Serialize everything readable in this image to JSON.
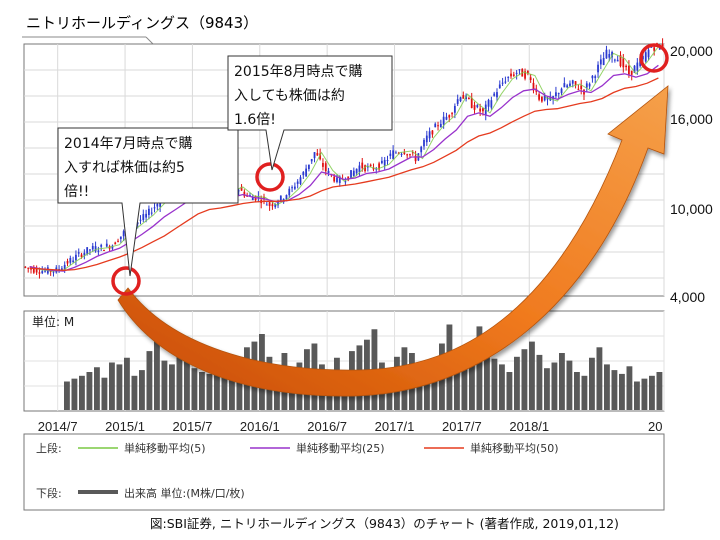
{
  "title": "ニトリホールディングス（9843）",
  "chart_data": {
    "type": "candlestick",
    "price_axis": {
      "ticks": [
        4000,
        10000,
        16000,
        20000
      ],
      "tick_labels": [
        "4,000",
        "10,000",
        "16,000",
        "20,000"
      ]
    },
    "date_axis": {
      "categories": [
        "2014/7",
        "2015/1",
        "2015/7",
        "2016/1",
        "2016/7",
        "2017/1",
        "2017/7",
        "2018/1",
        "20"
      ],
      "range": [
        "2014/04",
        "2019/01"
      ]
    },
    "series": [
      {
        "name": "単純移動平均(5)",
        "color": "#7ac943",
        "months": [
          "2014/04",
          "2014/05",
          "2014/06",
          "2014/07",
          "2014/08",
          "2014/09",
          "2014/10",
          "2014/11",
          "2014/12",
          "2015/01",
          "2015/02",
          "2015/03",
          "2015/04",
          "2015/05",
          "2015/06",
          "2015/07",
          "2015/08",
          "2015/09",
          "2015/10",
          "2015/11",
          "2015/12",
          "2016/01",
          "2016/02",
          "2016/03",
          "2016/04",
          "2016/05",
          "2016/06",
          "2016/07",
          "2016/08",
          "2016/09",
          "2016/10",
          "2016/11",
          "2016/12",
          "2017/01",
          "2017/02",
          "2017/03",
          "2017/04",
          "2017/05",
          "2017/06",
          "2017/07",
          "2017/08",
          "2017/09",
          "2017/10",
          "2017/11",
          "2017/12",
          "2018/01",
          "2018/02",
          "2018/03",
          "2018/04",
          "2018/05",
          "2018/06",
          "2018/07",
          "2018/08",
          "2018/09",
          "2018/10",
          "2018/11",
          "2018/12"
        ],
        "values": [
          6000,
          5800,
          5700,
          5750,
          6300,
          6800,
          7200,
          7300,
          7500,
          8300,
          8900,
          9500,
          10300,
          10800,
          11300,
          11900,
          11100,
          10700,
          11100,
          11400,
          10800,
          10700,
          10200,
          10600,
          11300,
          12300,
          13700,
          12500,
          11800,
          12100,
          12800,
          12600,
          12900,
          13700,
          13800,
          13300,
          14700,
          15600,
          16200,
          17400,
          16800,
          16300,
          17400,
          18300,
          18700,
          18500,
          17200,
          17000,
          17800,
          18000,
          17600,
          18700,
          19800,
          19500,
          18600,
          19300,
          20200
        ]
      },
      {
        "name": "単純移動平均(25)",
        "color": "#9933cc",
        "months": [
          "2014/04",
          "2014/05",
          "2014/06",
          "2014/07",
          "2014/08",
          "2014/09",
          "2014/10",
          "2014/11",
          "2014/12",
          "2015/01",
          "2015/02",
          "2015/03",
          "2015/04",
          "2015/05",
          "2015/06",
          "2015/07",
          "2015/08",
          "2015/09",
          "2015/10",
          "2015/11",
          "2015/12",
          "2016/01",
          "2016/02",
          "2016/03",
          "2016/04",
          "2016/05",
          "2016/06",
          "2016/07",
          "2016/08",
          "2016/09",
          "2016/10",
          "2016/11",
          "2016/12",
          "2017/01",
          "2017/02",
          "2017/03",
          "2017/04",
          "2017/05",
          "2017/06",
          "2017/07",
          "2017/08",
          "2017/09",
          "2017/10",
          "2017/11",
          "2017/12",
          "2018/01",
          "2018/02",
          "2018/03",
          "2018/04",
          "2018/05",
          "2018/06",
          "2018/07",
          "2018/08",
          "2018/09",
          "2018/10",
          "2018/11",
          "2018/12"
        ],
        "values": [
          6000,
          5850,
          5750,
          5700,
          5950,
          6300,
          6700,
          7000,
          7250,
          7700,
          8200,
          8750,
          9400,
          9900,
          10400,
          10900,
          10800,
          10500,
          10700,
          10900,
          10700,
          10600,
          10400,
          10500,
          10900,
          11500,
          12400,
          12200,
          11900,
          12000,
          12300,
          12400,
          12600,
          13000,
          13400,
          13400,
          13900,
          14600,
          15200,
          16100,
          16300,
          16100,
          16600,
          17200,
          17600,
          17700,
          17300,
          17100,
          17400,
          17600,
          17500,
          17900,
          18500,
          18600,
          18400,
          18600,
          19100
        ]
      },
      {
        "name": "単純移動平均(50)",
        "color": "#e53b1f",
        "months": [
          "2014/04",
          "2014/05",
          "2014/06",
          "2014/07",
          "2014/08",
          "2014/09",
          "2014/10",
          "2014/11",
          "2014/12",
          "2015/01",
          "2015/02",
          "2015/03",
          "2015/04",
          "2015/05",
          "2015/06",
          "2015/07",
          "2015/08",
          "2015/09",
          "2015/10",
          "2015/11",
          "2015/12",
          "2016/01",
          "2016/02",
          "2016/03",
          "2016/04",
          "2016/05",
          "2016/06",
          "2016/07",
          "2016/08",
          "2016/09",
          "2016/10",
          "2016/11",
          "2016/12",
          "2017/01",
          "2017/02",
          "2017/03",
          "2017/04",
          "2017/05",
          "2017/06",
          "2017/07",
          "2017/08",
          "2017/09",
          "2017/10",
          "2017/11",
          "2017/12",
          "2018/01",
          "2018/02",
          "2018/03",
          "2018/04",
          "2018/05",
          "2018/06",
          "2018/07",
          "2018/08",
          "2018/09",
          "2018/10",
          "2018/11",
          "2018/12"
        ],
        "values": [
          5900,
          5850,
          5800,
          5750,
          5800,
          5950,
          6150,
          6400,
          6650,
          6950,
          7300,
          7700,
          8100,
          8600,
          9100,
          9600,
          9900,
          10000,
          10150,
          10300,
          10400,
          10450,
          10450,
          10500,
          10600,
          10800,
          11150,
          11400,
          11500,
          11600,
          11750,
          11900,
          12050,
          12300,
          12550,
          12750,
          13050,
          13450,
          13850,
          14400,
          14800,
          15000,
          15350,
          15750,
          16100,
          16400,
          16500,
          16550,
          16700,
          16850,
          16950,
          17150,
          17500,
          17750,
          17850,
          18050,
          18350
        ]
      }
    ],
    "volume": {
      "unit_label": "単位: M",
      "values": [
        30,
        33,
        36,
        40,
        45,
        34,
        50,
        48,
        55,
        36,
        42,
        62,
        75,
        52,
        48,
        58,
        70,
        44,
        40,
        38,
        55,
        52,
        46,
        40,
        66,
        72,
        80,
        56,
        45,
        60,
        38,
        50,
        64,
        70,
        48,
        42,
        55,
        36,
        62,
        68,
        74,
        85,
        50,
        40,
        56,
        66,
        60,
        46,
        42,
        52,
        70,
        90,
        58,
        50,
        62,
        88,
        70,
        54,
        48,
        40,
        56,
        64,
        72,
        58,
        44,
        50,
        60,
        52,
        40,
        36,
        55,
        66,
        48,
        42,
        38,
        46,
        30,
        33,
        36,
        40
      ]
    },
    "legend": {
      "upper_label": "上段:",
      "lower_label": "下段:",
      "volume_label": "出来高 単位:(M株/口/枚)"
    }
  },
  "annotations": [
    {
      "text_lines": [
        "2014年7月時点で購",
        "入すれば株価は約5",
        "倍!!"
      ]
    },
    {
      "text_lines": [
        "2015年8月時点で購",
        "入しても株価は約",
        "1.6倍!"
      ]
    }
  ],
  "caption": "図:SBI証券, ニトリホールディングス（9843）のチャート (著者作成, 2019,01,12)",
  "colors": {
    "bull": "#2a3ad0",
    "bear": "#e01010",
    "volume": "#595959",
    "highlight_circle": "#e02020",
    "arrow": "#e8640a"
  }
}
